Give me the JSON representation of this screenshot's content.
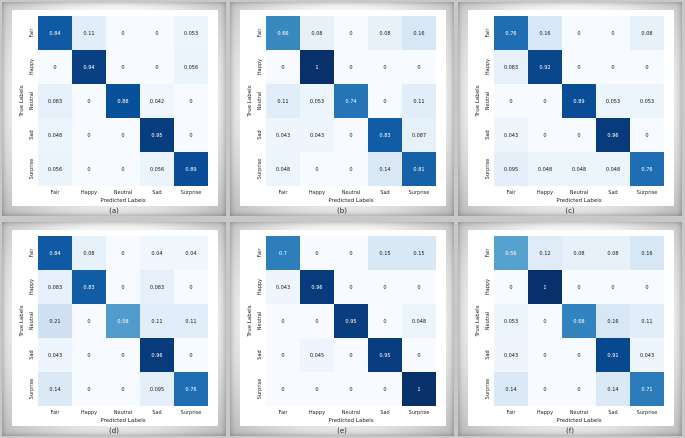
{
  "chart_data": [
    {
      "type": "heatmap",
      "caption": "(a)",
      "xlabel": "Predicted Labels",
      "ylabel": "True Labels",
      "categories": [
        "Fair",
        "Happy",
        "Neutral",
        "Sad",
        "Surprise"
      ],
      "values": [
        [
          "0.84",
          "0.11",
          "0",
          "0",
          "0.053"
        ],
        [
          "0",
          "0.94",
          "0",
          "0",
          "0.056"
        ],
        [
          "0.083",
          "0",
          "0.88",
          "0.042",
          "0"
        ],
        [
          "0.048",
          "0",
          "0",
          "0.95",
          "0"
        ],
        [
          "0.056",
          "0",
          "0",
          "0.056",
          "0.89"
        ]
      ]
    },
    {
      "type": "heatmap",
      "caption": "(b)",
      "xlabel": "Predicted Labels",
      "ylabel": "True Labels",
      "categories": [
        "Fair",
        "Happy",
        "Neutral",
        "Sad",
        "Surprise"
      ],
      "values": [
        [
          "0.66",
          "0.08",
          "0",
          "0.08",
          "0.16"
        ],
        [
          "0",
          "1",
          "0",
          "0",
          "0"
        ],
        [
          "0.11",
          "0.053",
          "0.74",
          "0",
          "0.11"
        ],
        [
          "0.043",
          "0.043",
          "0",
          "0.83",
          "0.087"
        ],
        [
          "0.048",
          "0",
          "0",
          "0.14",
          "0.81"
        ]
      ]
    },
    {
      "type": "heatmap",
      "caption": "(c)",
      "xlabel": "Predicted Labels",
      "ylabel": "True Labels",
      "categories": [
        "Fair",
        "Happy",
        "Neutral",
        "Sad",
        "Surprise"
      ],
      "values": [
        [
          "0.76",
          "0.16",
          "0",
          "0",
          "0.08"
        ],
        [
          "0.083",
          "0.92",
          "0",
          "0",
          "0"
        ],
        [
          "0",
          "0",
          "0.89",
          "0.053",
          "0.053"
        ],
        [
          "0.043",
          "0",
          "0",
          "0.96",
          "0"
        ],
        [
          "0.095",
          "0.048",
          "0.048",
          "0.048",
          "0.76"
        ]
      ]
    },
    {
      "type": "heatmap",
      "caption": "(d)",
      "xlabel": "Predicted Labels",
      "ylabel": "True Labels",
      "categories": [
        "Fair",
        "Happy",
        "Neutral",
        "Sad",
        "Surprise"
      ],
      "values": [
        [
          "0.84",
          "0.08",
          "0",
          "0.04",
          "0.04"
        ],
        [
          "0.083",
          "0.83",
          "0",
          "0.083",
          "0"
        ],
        [
          "0.21",
          "0",
          "0.58",
          "0.11",
          "0.11"
        ],
        [
          "0.043",
          "0",
          "0",
          "0.96",
          "0"
        ],
        [
          "0.14",
          "0",
          "0",
          "0.095",
          "0.76"
        ]
      ]
    },
    {
      "type": "heatmap",
      "caption": "(e)",
      "xlabel": "Predicted Labels",
      "ylabel": "True Labels",
      "categories": [
        "Fair",
        "Happy",
        "Neutral",
        "Sad",
        "Surprise"
      ],
      "values": [
        [
          "0.7",
          "0",
          "0",
          "0.15",
          "0.15"
        ],
        [
          "0.043",
          "0.96",
          "0",
          "0",
          "0"
        ],
        [
          "0",
          "0",
          "0.95",
          "0",
          "0.048"
        ],
        [
          "0",
          "0.045",
          "0",
          "0.95",
          "0"
        ],
        [
          "0",
          "0",
          "0",
          "0",
          "1"
        ]
      ]
    },
    {
      "type": "heatmap",
      "caption": "(f)",
      "xlabel": "Predicted Labels",
      "ylabel": "True Labels",
      "categories": [
        "Fair",
        "Happy",
        "Neutral",
        "Sad",
        "Surprise"
      ],
      "values": [
        [
          "0.56",
          "0.12",
          "0.08",
          "0.08",
          "0.16"
        ],
        [
          "0",
          "1",
          "0",
          "0",
          "0"
        ],
        [
          "0.053",
          "0",
          "0.68",
          "0.16",
          "0.11"
        ],
        [
          "0.043",
          "0",
          "0",
          "0.91",
          "0.043"
        ],
        [
          "0.14",
          "0",
          "0",
          "0.14",
          "0.71"
        ]
      ]
    }
  ]
}
